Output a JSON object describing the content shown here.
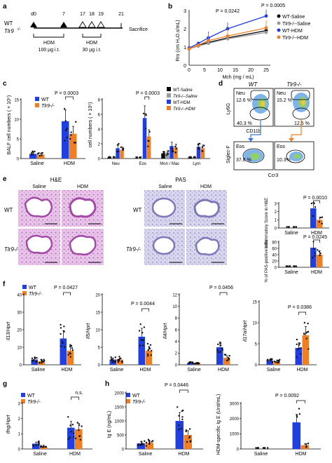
{
  "colors": {
    "wt": "#1f3fe0",
    "ko": "#f07f24",
    "wt_saline": "#000000",
    "ko_saline": "#9a9a9a",
    "he_stain": "#c98ac9",
    "pas_stain": "#a9a4d3"
  },
  "panel_a": {
    "label": "a",
    "days": [
      "d0",
      "7",
      "17",
      "18",
      "19",
      "21"
    ],
    "row_wt": "WT",
    "row_ko": "Tlr9",
    "ko_sup": "-/-",
    "sacrifice": "Sacrifice",
    "dose1_name": "HDM",
    "dose1_amount": "100 μg i.t.",
    "dose2_name": "HDM",
    "dose2_amount": "30 μg i.t."
  },
  "panel_b": {
    "label": "b",
    "ylabel": "Rrs (cm H₂O.s/mL)",
    "xlabel": "Mch (mg / mL)",
    "yticks": [
      "0",
      "1",
      "2",
      "3"
    ],
    "xticks": [
      "0",
      "5",
      "10",
      "15",
      "20",
      "25"
    ],
    "p1": "P = 0.0242",
    "p2": "P = 0.0005",
    "legend": [
      "WT-Saline",
      "Tlr9-/--Saline",
      "WT-HDM",
      "Tlr9-/--HDM"
    ]
  },
  "panel_c": {
    "label": "c",
    "ylabel1": "BALF cell numbers ( × 10⁵)",
    "ylabel2": "cell numbers ( × 10⁵)",
    "yticks1": [
      "0",
      "5",
      "10",
      "15"
    ],
    "yticks2": [
      "0",
      "2",
      "4",
      "6",
      "8"
    ],
    "p1": "P = 0.0003",
    "p2": "P = 0.0003",
    "x1": [
      "Saline",
      "HDM"
    ],
    "x2": [
      "Neu",
      "Eos",
      "Mon / Mac",
      "Lym"
    ],
    "legend1": [
      "WT",
      "Tlr9-/-"
    ],
    "legend2": [
      "WT-Saline",
      "Tlr9-/--Saline",
      "WT-HDM",
      "Tlr9-/--HDM"
    ]
  },
  "panel_d": {
    "label": "d",
    "wt": "WT",
    "ko": "Tlr9-/-",
    "y1": "Ly6G",
    "x1": "CD11b",
    "y2": "Siglec-F",
    "x2": "Ccr3",
    "neu": "Neu",
    "eos": "Eos",
    "wt_neu": "12.6 %",
    "wt_mid": "40.3 %",
    "wt_eos": "37.8 %",
    "ko_neu": "15.2 %",
    "ko_mid": "12.5 %",
    "ko_eos": "10.3%"
  },
  "panel_e": {
    "label": "e",
    "he": "H&E",
    "pas": "PAS",
    "saline": "Saline",
    "hdm": "HDM",
    "wt": "WT",
    "ko": "Tlr9-/-",
    "y1": "Inflammatory Score in H&E",
    "y2": "% of PAS-positive cells",
    "yticks1": [
      "0",
      "1",
      "2",
      "3"
    ],
    "yticks2": [
      "0",
      "20",
      "40",
      "60",
      "80"
    ],
    "p1": "P = 0.0010",
    "p2": "P = 0.0245"
  },
  "panel_f": {
    "label": "f",
    "legend": [
      "WT",
      "Tlr9-/-"
    ],
    "genes": [
      "Il13/Hprt",
      "Il5/Hprt",
      "Il4/Hprt",
      "Il17a/Hprt"
    ],
    "pvals": [
      "P = 0.0427",
      "P = 0.0044",
      "P = 0.0456",
      "P = 0.0386"
    ],
    "yt1": [
      "0",
      "10",
      "20",
      "30",
      "40"
    ],
    "yt2": [
      "0",
      "5",
      "10",
      "15",
      "20"
    ],
    "yt3": [
      "0",
      "2",
      "4",
      "6",
      "8",
      "10",
      "12"
    ],
    "yt4": [
      "0",
      "5",
      "10",
      "15"
    ],
    "x": [
      "Saline",
      "HDM"
    ]
  },
  "panel_g": {
    "label": "g",
    "legend": [
      "WT",
      "Tlr9-/-"
    ],
    "gene": "Ifng/Hprt",
    "yt": [
      "0",
      "1",
      "2",
      "3"
    ],
    "ns": "n.s.",
    "x": [
      "Saline",
      "HDM"
    ]
  },
  "panel_h": {
    "label": "h",
    "legend": [
      "WT",
      "Tlr9-/-"
    ],
    "y1": "Ig E (ng/mL)",
    "y2": "HDM-specific Ig E (Unit/mL)",
    "yt1": [
      "0",
      "500",
      "1000",
      "1500",
      "2000"
    ],
    "yt2": [
      "0",
      "1000",
      "2000",
      "3000"
    ],
    "p1": "P = 0.0446",
    "p2": "P = 0.0092",
    "x": [
      "Saline",
      "HDM"
    ]
  },
  "chart_data": [
    {
      "type": "line",
      "panel": "b",
      "x": [
        0,
        3,
        6.25,
        12.5,
        25
      ],
      "series": [
        {
          "name": "WT-Saline",
          "values": [
            0.9,
            1.1,
            1.25,
            1.5,
            1.9
          ]
        },
        {
          "name": "Tlr9-/--Saline",
          "values": [
            0.9,
            1.05,
            1.2,
            1.45,
            1.8
          ]
        },
        {
          "name": "WT-HDM",
          "values": [
            0.95,
            1.2,
            1.5,
            2.0,
            2.7
          ]
        },
        {
          "name": "Tlr9-/--HDM",
          "values": [
            0.9,
            1.1,
            1.35,
            1.6,
            2.05
          ]
        }
      ],
      "ylim": [
        0,
        3
      ],
      "xlim": [
        0,
        25
      ]
    },
    {
      "type": "bar",
      "panel": "c-left",
      "categories": [
        "Saline",
        "HDM"
      ],
      "series": [
        {
          "name": "WT",
          "values": [
            1.2,
            9.5
          ]
        },
        {
          "name": "Tlr9-/-",
          "values": [
            1.0,
            6.3
          ]
        }
      ],
      "ylim": [
        0,
        15
      ]
    },
    {
      "type": "bar",
      "panel": "c-right",
      "categories": [
        "Neu",
        "Eos",
        "Mon / Mac",
        "Lym"
      ],
      "series": [
        {
          "name": "WT-Saline",
          "values": [
            0.1,
            0.05,
            0.7,
            0.1
          ]
        },
        {
          "name": "Tlr9-/--Saline",
          "values": [
            0.1,
            0.05,
            0.8,
            0.1
          ]
        },
        {
          "name": "WT-HDM",
          "values": [
            1.4,
            5.5,
            1.7,
            1.6
          ]
        },
        {
          "name": "Tlr9-/--HDM",
          "values": [
            1.2,
            3.0,
            1.5,
            1.4
          ]
        }
      ],
      "ylim": [
        0,
        8
      ]
    },
    {
      "type": "bar",
      "panel": "e-top",
      "categories": [
        "Saline",
        "HDM"
      ],
      "series": [
        {
          "name": "WT",
          "values": [
            0,
            2.4
          ]
        },
        {
          "name": "Tlr9-/-",
          "values": [
            0,
            1.0
          ]
        }
      ],
      "ylim": [
        0,
        3
      ]
    },
    {
      "type": "bar",
      "panel": "e-bottom",
      "categories": [
        "Saline",
        "HDM"
      ],
      "series": [
        {
          "name": "WT",
          "values": [
            0,
            62
          ]
        },
        {
          "name": "Tlr9-/-",
          "values": [
            0,
            40
          ]
        }
      ],
      "ylim": [
        0,
        80
      ]
    },
    {
      "type": "bar",
      "panel": "f-1",
      "categories": [
        "Saline",
        "HDM"
      ],
      "series": [
        {
          "name": "WT",
          "values": [
            3,
            15
          ]
        },
        {
          "name": "Tlr9-/-",
          "values": [
            2,
            8
          ]
        }
      ],
      "ylim": [
        0,
        40
      ]
    },
    {
      "type": "bar",
      "panel": "f-2",
      "categories": [
        "Saline",
        "HDM"
      ],
      "series": [
        {
          "name": "WT",
          "values": [
            1.5,
            8
          ]
        },
        {
          "name": "Tlr9-/-",
          "values": [
            1.5,
            4
          ]
        }
      ],
      "ylim": [
        0,
        20
      ]
    },
    {
      "type": "bar",
      "panel": "f-3",
      "categories": [
        "Saline",
        "HDM"
      ],
      "series": [
        {
          "name": "WT",
          "values": [
            0.3,
            3
          ]
        },
        {
          "name": "Tlr9-/-",
          "values": [
            0.2,
            1.2
          ]
        }
      ],
      "ylim": [
        0,
        12
      ]
    },
    {
      "type": "bar",
      "panel": "f-4",
      "categories": [
        "Saline",
        "HDM"
      ],
      "series": [
        {
          "name": "WT",
          "values": [
            1,
            4
          ]
        },
        {
          "name": "Tlr9-/-",
          "values": [
            0.8,
            7
          ]
        }
      ],
      "ylim": [
        0,
        15
      ]
    },
    {
      "type": "bar",
      "panel": "g",
      "categories": [
        "Saline",
        "HDM"
      ],
      "series": [
        {
          "name": "WT",
          "values": [
            0.35,
            1.4
          ]
        },
        {
          "name": "Tlr9-/-",
          "values": [
            0.15,
            1.3
          ]
        }
      ],
      "ylim": [
        0,
        3
      ]
    },
    {
      "type": "bar",
      "panel": "h-1",
      "categories": [
        "Saline",
        "HDM"
      ],
      "series": [
        {
          "name": "WT",
          "values": [
            200,
            1000
          ]
        },
        {
          "name": "Tlr9-/-",
          "values": [
            220,
            500
          ]
        }
      ],
      "ylim": [
        0,
        2000
      ]
    },
    {
      "type": "bar",
      "panel": "h-2",
      "categories": [
        "Saline",
        "HDM"
      ],
      "series": [
        {
          "name": "WT",
          "values": [
            0,
            1750
          ]
        },
        {
          "name": "Tlr9-/-",
          "values": [
            0,
            250
          ]
        }
      ],
      "ylim": [
        0,
        3000
      ]
    }
  ]
}
